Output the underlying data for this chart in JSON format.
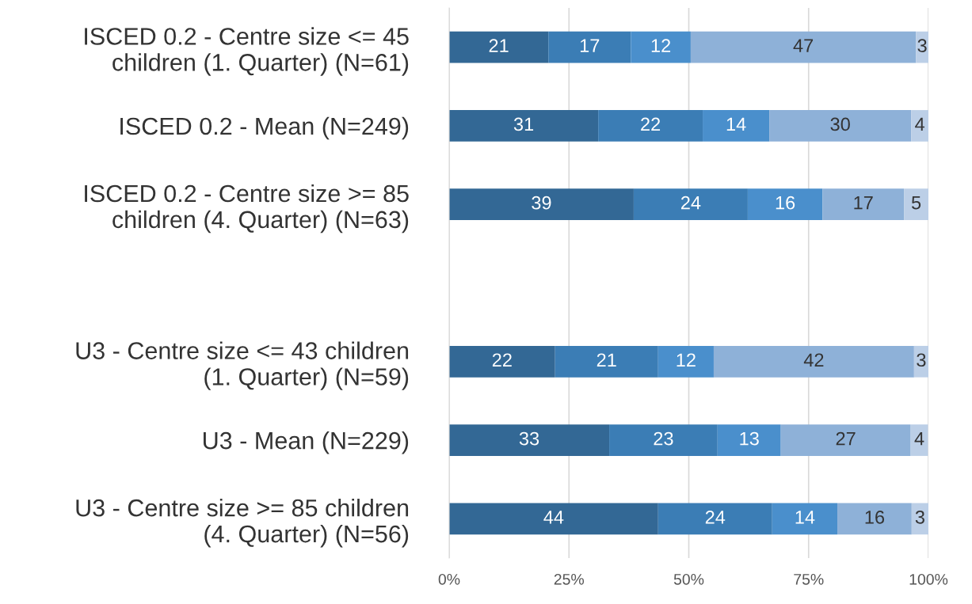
{
  "chart_data": {
    "type": "bar",
    "orientation": "horizontal",
    "stacked": true,
    "categories": [
      "ISCED 0.2 - Centre size <= 45 children (1. Quarter) (N=61)",
      "ISCED 0.2 - Mean (N=249)",
      "ISCED 0.2 - Centre size >= 85 children (4. Quarter) (N=63)",
      null,
      "U3 - Centre size <= 43 children (1. Quarter) (N=59)",
      "U3 - Mean (N=229)",
      "U3 - Centre size >= 85 children (4. Quarter) (N=56)"
    ],
    "series": [
      {
        "color": "#336895",
        "values": [
          20.7,
          31.1,
          38.5,
          null,
          22.1,
          33.4,
          43.6
        ],
        "value_labels": [
          "21",
          "31",
          "39",
          null,
          "22",
          "33",
          "44"
        ]
      },
      {
        "color": "#3b7db5",
        "values": [
          17.2,
          21.8,
          23.8,
          null,
          21.5,
          22.6,
          23.8
        ],
        "value_labels": [
          "17",
          "22",
          "24",
          null,
          "21",
          "23",
          "24"
        ]
      },
      {
        "color": "#4a8fcc",
        "values": [
          12.5,
          13.9,
          15.6,
          null,
          11.6,
          13.2,
          13.6
        ],
        "value_labels": [
          "12",
          "14",
          "16",
          null,
          "12",
          "13",
          "14"
        ]
      },
      {
        "color": "#8eb1d8",
        "values": [
          47.0,
          29.6,
          17.0,
          null,
          41.8,
          27.1,
          15.5
        ],
        "value_labels": [
          "47",
          "30",
          "17",
          null,
          "42",
          "27",
          "16"
        ]
      },
      {
        "color": "#bccfe7",
        "values": [
          2.6,
          3.6,
          5.1,
          null,
          3.0,
          3.6,
          3.5
        ],
        "value_labels": [
          "3",
          "4",
          "5",
          null,
          "3",
          "4",
          "3"
        ]
      }
    ],
    "xlim": [
      0,
      100
    ],
    "xticks": [
      {
        "value": 0,
        "label": "0%"
      },
      {
        "value": 25,
        "label": "25%"
      },
      {
        "value": 50,
        "label": "50%"
      },
      {
        "value": 75,
        "label": "75%"
      },
      {
        "value": 100,
        "label": "100%"
      }
    ],
    "grid": "x",
    "legend": false
  }
}
